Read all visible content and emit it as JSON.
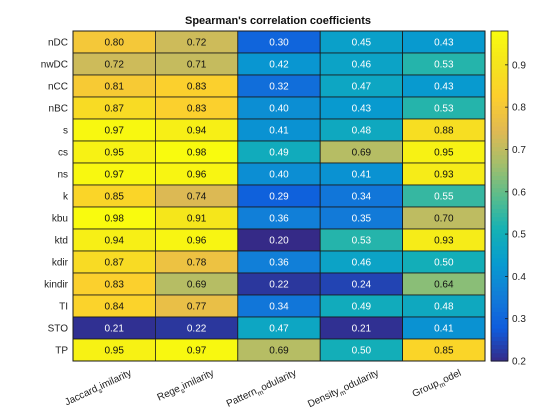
{
  "chart_data": {
    "type": "heatmap",
    "title": "Spearman's correlation coefficients",
    "rows": [
      "nDC",
      "nwDC",
      "nCC",
      "nBC",
      "s",
      "cs",
      "ns",
      "k",
      "kbu",
      "ktd",
      "kdir",
      "kindir",
      "TI",
      "STO",
      "TP"
    ],
    "columns": [
      {
        "label": "Jaccard similarity",
        "main": "Jaccard",
        "sub": "s",
        "rest": "imilarity"
      },
      {
        "label": "Rege similarity",
        "main": "Rege",
        "sub": "s",
        "rest": "imilarity"
      },
      {
        "label": "Pattern modularity",
        "main": "Pattern",
        "sub": "m",
        "rest": "odularity"
      },
      {
        "label": "Density modularity",
        "main": "Density",
        "sub": "m",
        "rest": "odularity"
      },
      {
        "label": "Group model",
        "main": "Group",
        "sub": "m",
        "rest": "odel"
      }
    ],
    "values": [
      [
        0.8,
        0.72,
        0.3,
        0.45,
        0.43
      ],
      [
        0.72,
        0.71,
        0.42,
        0.46,
        0.53
      ],
      [
        0.81,
        0.83,
        0.32,
        0.47,
        0.43
      ],
      [
        0.87,
        0.83,
        0.4,
        0.43,
        0.53
      ],
      [
        0.97,
        0.94,
        0.41,
        0.48,
        0.88
      ],
      [
        0.95,
        0.98,
        0.49,
        0.69,
        0.95
      ],
      [
        0.97,
        0.96,
        0.4,
        0.41,
        0.93
      ],
      [
        0.85,
        0.74,
        0.29,
        0.34,
        0.55
      ],
      [
        0.98,
        0.91,
        0.36,
        0.35,
        0.7
      ],
      [
        0.94,
        0.96,
        0.2,
        0.53,
        0.93
      ],
      [
        0.87,
        0.78,
        0.36,
        0.46,
        0.5
      ],
      [
        0.83,
        0.69,
        0.22,
        0.24,
        0.64
      ],
      [
        0.84,
        0.77,
        0.34,
        0.49,
        0.48
      ],
      [
        0.21,
        0.22,
        0.47,
        0.21,
        0.41
      ],
      [
        0.95,
        0.97,
        0.69,
        0.5,
        0.85
      ]
    ],
    "value_labels": [
      [
        "0.80",
        "0.72",
        "0.30",
        "0.45",
        "0.43"
      ],
      [
        "0.72",
        "0.71",
        "0.42",
        "0.46",
        "0.53"
      ],
      [
        "0.81",
        "0.83",
        "0.32",
        "0.47",
        "0.43"
      ],
      [
        "0.87",
        "0.83",
        "0.40",
        "0.43",
        "0.53"
      ],
      [
        "0.97",
        "0.94",
        "0.41",
        "0.48",
        "0.88"
      ],
      [
        "0.95",
        "0.98",
        "0.49",
        "0.69",
        "0.95"
      ],
      [
        "0.97",
        "0.96",
        "0.40",
        "0.41",
        "0.93"
      ],
      [
        "0.85",
        "0.74",
        "0.29",
        "0.34",
        "0.55"
      ],
      [
        "0.98",
        "0.91",
        "0.36",
        "0.35",
        "0.70"
      ],
      [
        "0.94",
        "0.96",
        "0.20",
        "0.53",
        "0.93"
      ],
      [
        "0.87",
        "0.78",
        "0.36",
        "0.46",
        "0.50"
      ],
      [
        "0.83",
        "0.69",
        "0.22",
        "0.24",
        "0.64"
      ],
      [
        "0.84",
        "0.77",
        "0.34",
        "0.49",
        "0.48"
      ],
      [
        "0.21",
        "0.22",
        "0.47",
        "0.21",
        "0.41"
      ],
      [
        "0.95",
        "0.97",
        "0.69",
        "0.50",
        "0.85"
      ]
    ],
    "color_range": [
      0.2,
      0.98
    ],
    "colorbar_ticks": [
      0.2,
      0.3,
      0.4,
      0.5,
      0.6,
      0.7,
      0.8,
      0.9
    ],
    "colorbar_tick_labels": [
      "0.2",
      "0.3",
      "0.4",
      "0.5",
      "0.6",
      "0.7",
      "0.8",
      "0.9"
    ],
    "colormap": "parula",
    "legend": "colorbar-right",
    "xlabel": "",
    "ylabel": ""
  }
}
